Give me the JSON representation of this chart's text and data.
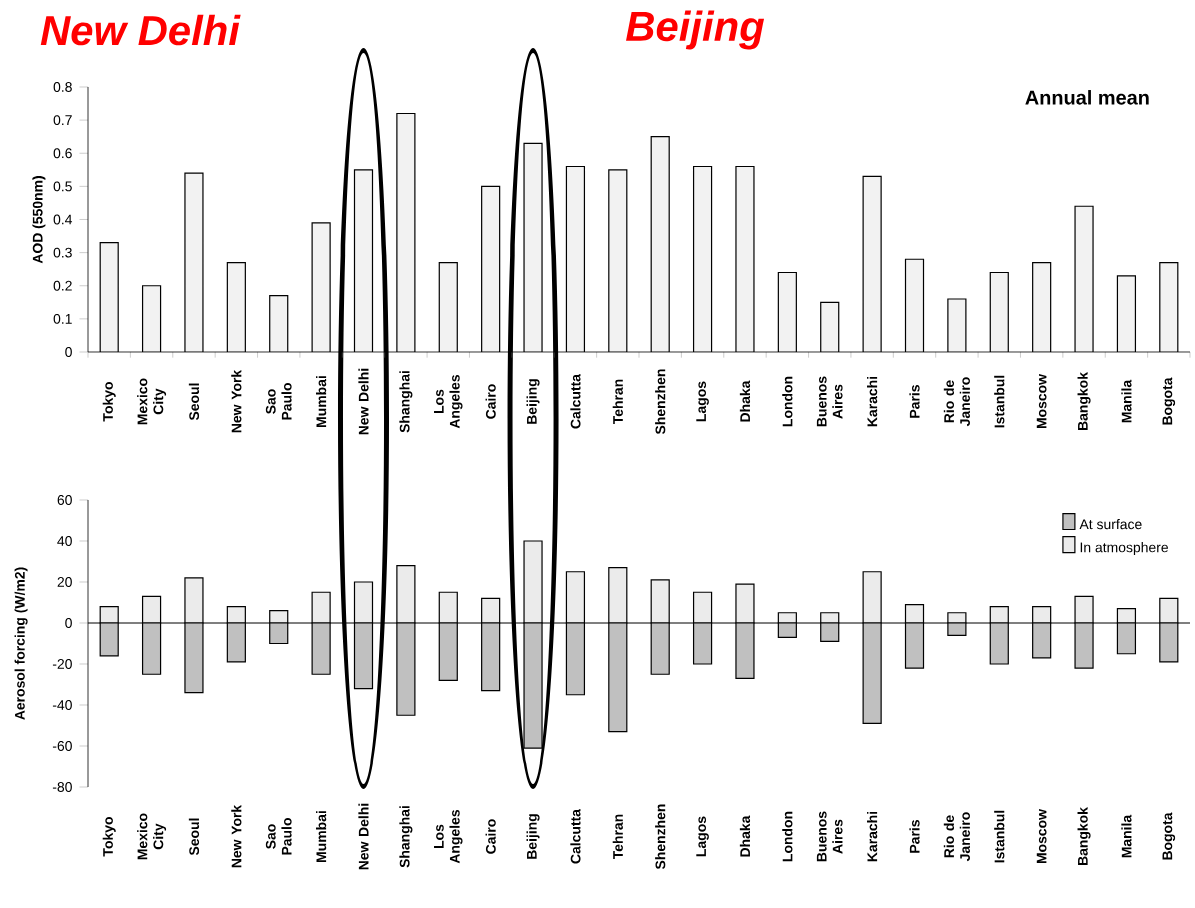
{
  "chart_data": [
    {
      "type": "bar",
      "title": "Annual mean",
      "ylabel": "AOD (550nm)",
      "categories": [
        "Tokyo",
        "Mexico City",
        "Seoul",
        "New York",
        "Sao Paulo",
        "Mumbai",
        "New Delhi",
        "Shanghai",
        "Los Angeles",
        "Cairo",
        "Beijing",
        "Calcutta",
        "Tehran",
        "Shenzhen",
        "Lagos",
        "Dhaka",
        "London",
        "Buenos Aires",
        "Karachi",
        "Paris",
        "Rio de Janeiro",
        "Istanbul",
        "Moscow",
        "Bangkok",
        "Manila",
        "Bogota"
      ],
      "values": [
        0.33,
        0.2,
        0.54,
        0.27,
        0.17,
        0.39,
        0.55,
        0.72,
        0.27,
        0.5,
        0.63,
        0.56,
        0.55,
        0.65,
        0.56,
        0.56,
        0.24,
        0.15,
        0.53,
        0.28,
        0.16,
        0.24,
        0.27,
        0.44,
        0.23,
        0.27
      ],
      "color": "#f2f2f2",
      "ylim": [
        0,
        0.8
      ],
      "yticks": [
        0,
        0.1,
        0.2,
        0.3,
        0.4,
        0.5,
        0.6,
        0.7,
        0.8
      ],
      "annotations": [
        "New Delhi",
        "Beijing"
      ]
    },
    {
      "type": "bar",
      "ylabel": "Aerosol forcing (W/m2)",
      "categories": [
        "Tokyo",
        "Mexico City",
        "Seoul",
        "New York",
        "Sao Paulo",
        "Mumbai",
        "New Delhi",
        "Shanghai",
        "Los Angeles",
        "Cairo",
        "Beijing",
        "Calcutta",
        "Tehran",
        "Shenzhen",
        "Lagos",
        "Dhaka",
        "London",
        "Buenos Aires",
        "Karachi",
        "Paris",
        "Rio de Janeiro",
        "Istanbul",
        "Moscow",
        "Bangkok",
        "Manila",
        "Bogota"
      ],
      "series": [
        {
          "name": "At surface",
          "color": "#c0c0c0",
          "values": [
            -16,
            -25,
            -34,
            -19,
            -10,
            -25,
            -32,
            -45,
            -28,
            -33,
            -61,
            -35,
            -53,
            -25,
            -20,
            -27,
            -7,
            -9,
            -49,
            -22,
            -6,
            -20,
            -17,
            -22,
            -15,
            -19
          ]
        },
        {
          "name": "In atmosphere",
          "color": "#ebebeb",
          "values": [
            8,
            13,
            22,
            8,
            6,
            15,
            20,
            28,
            15,
            12,
            40,
            25,
            27,
            21,
            15,
            19,
            5,
            5,
            25,
            9,
            5,
            8,
            8,
            13,
            7,
            12
          ]
        }
      ],
      "ylim": [
        -80,
        60
      ],
      "yticks": [
        -80,
        -60,
        -40,
        -20,
        0,
        20,
        40,
        60
      ],
      "stacked": true,
      "legend": "top right"
    }
  ]
}
